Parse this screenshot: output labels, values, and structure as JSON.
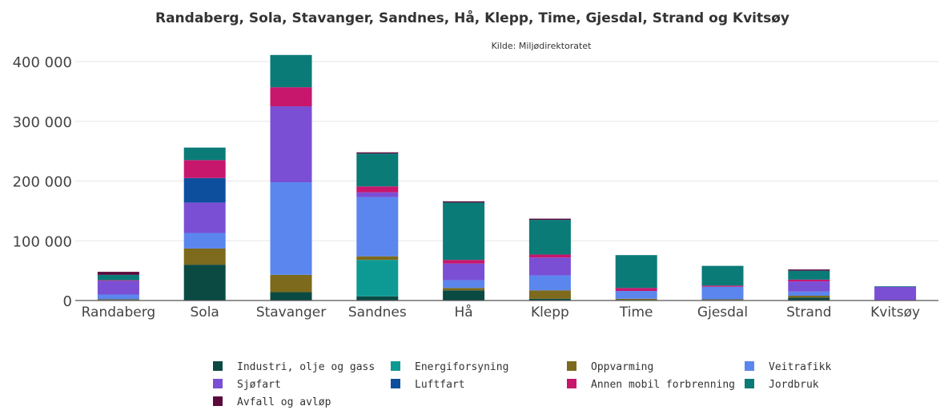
{
  "chart_data": {
    "type": "bar",
    "stacked": true,
    "title": "Randaberg, Sola, Stavanger, Sandnes, Hå, Klepp, Time, Gjesdal, Strand og Kvitsøy",
    "subtitle": "Kilde: Miljødirektoratet",
    "xlabel": "",
    "ylabel": "",
    "ylim": [
      0,
      420000
    ],
    "yticks": [
      0,
      100000,
      200000,
      300000,
      400000
    ],
    "ytick_labels": [
      "0",
      "100 000",
      "200 000",
      "300 000",
      "400 000"
    ],
    "grid": true,
    "legend_placement": "bottom",
    "categories": [
      "Randaberg",
      "Sola",
      "Stavanger",
      "Sandnes",
      "Hå",
      "Klepp",
      "Time",
      "Gjesdal",
      "Strand",
      "Kvitsøy"
    ],
    "series": [
      {
        "name": "Industri, olje og gass",
        "color": "#0b4a43",
        "values": [
          1000,
          60000,
          14000,
          7000,
          17000,
          3000,
          1000,
          1000,
          5000,
          0
        ]
      },
      {
        "name": "Energiforsyning",
        "color": "#0e9a94",
        "values": [
          0,
          0,
          0,
          61000,
          0,
          0,
          0,
          0,
          0,
          0
        ]
      },
      {
        "name": "Oppvarming",
        "color": "#7d6a1c",
        "values": [
          1000,
          27000,
          29000,
          6000,
          4000,
          14000,
          2000,
          1000,
          3000,
          0
        ]
      },
      {
        "name": "Veitrafikk",
        "color": "#5b86ee",
        "values": [
          8000,
          26000,
          155000,
          99000,
          13000,
          25000,
          13000,
          21000,
          7000,
          0
        ]
      },
      {
        "name": "Sjøfart",
        "color": "#7a4fd4",
        "values": [
          23000,
          51000,
          127000,
          8000,
          28000,
          30000,
          0,
          0,
          17000,
          23000
        ]
      },
      {
        "name": "Luftfart",
        "color": "#0d4f9c",
        "values": [
          0,
          41000,
          0,
          0,
          0,
          0,
          0,
          0,
          0,
          0
        ]
      },
      {
        "name": "Annen mobil forbrenning",
        "color": "#c7176d",
        "values": [
          1000,
          30000,
          32000,
          10000,
          6000,
          5000,
          5000,
          2000,
          3000,
          0
        ]
      },
      {
        "name": "Jordbruk",
        "color": "#0b7b78",
        "values": [
          9000,
          21000,
          54000,
          55000,
          96000,
          58000,
          55000,
          33000,
          15000,
          1000
        ]
      },
      {
        "name": "Avfall og avløp",
        "color": "#5a0a3c",
        "values": [
          5000,
          0,
          0,
          2000,
          2000,
          2000,
          0,
          0,
          2000,
          0
        ]
      }
    ]
  }
}
